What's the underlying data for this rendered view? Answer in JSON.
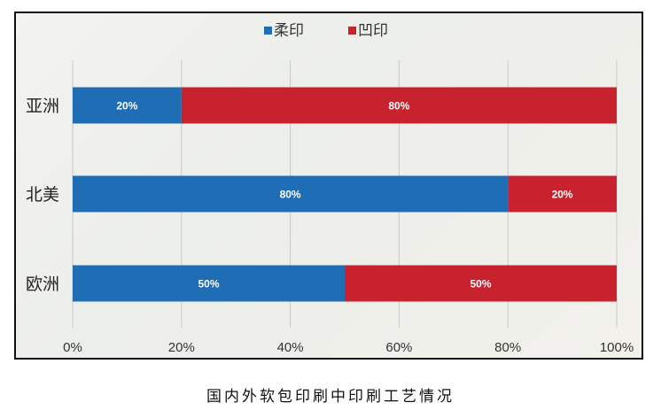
{
  "chart_data": {
    "type": "bar",
    "orientation": "horizontal",
    "stacked": true,
    "categories": [
      "亚洲",
      "北美",
      "欧洲"
    ],
    "series": [
      {
        "name": "柔印",
        "color": "#1f6db5",
        "values": [
          20,
          80,
          50
        ],
        "labels": [
          "20%",
          "80%",
          "50%"
        ]
      },
      {
        "name": "凹印",
        "color": "#c8222e",
        "values": [
          80,
          20,
          50
        ],
        "labels": [
          "80%",
          "20%",
          "50%"
        ]
      }
    ],
    "xlim": [
      0,
      100
    ],
    "xticks": [
      0,
      20,
      40,
      60,
      80,
      100
    ],
    "xtick_labels": [
      "0%",
      "20%",
      "40%",
      "60%",
      "80%",
      "100%"
    ],
    "grid": true,
    "legend_position": "top-center",
    "title": "国内外软包印刷中印刷工艺情况"
  }
}
